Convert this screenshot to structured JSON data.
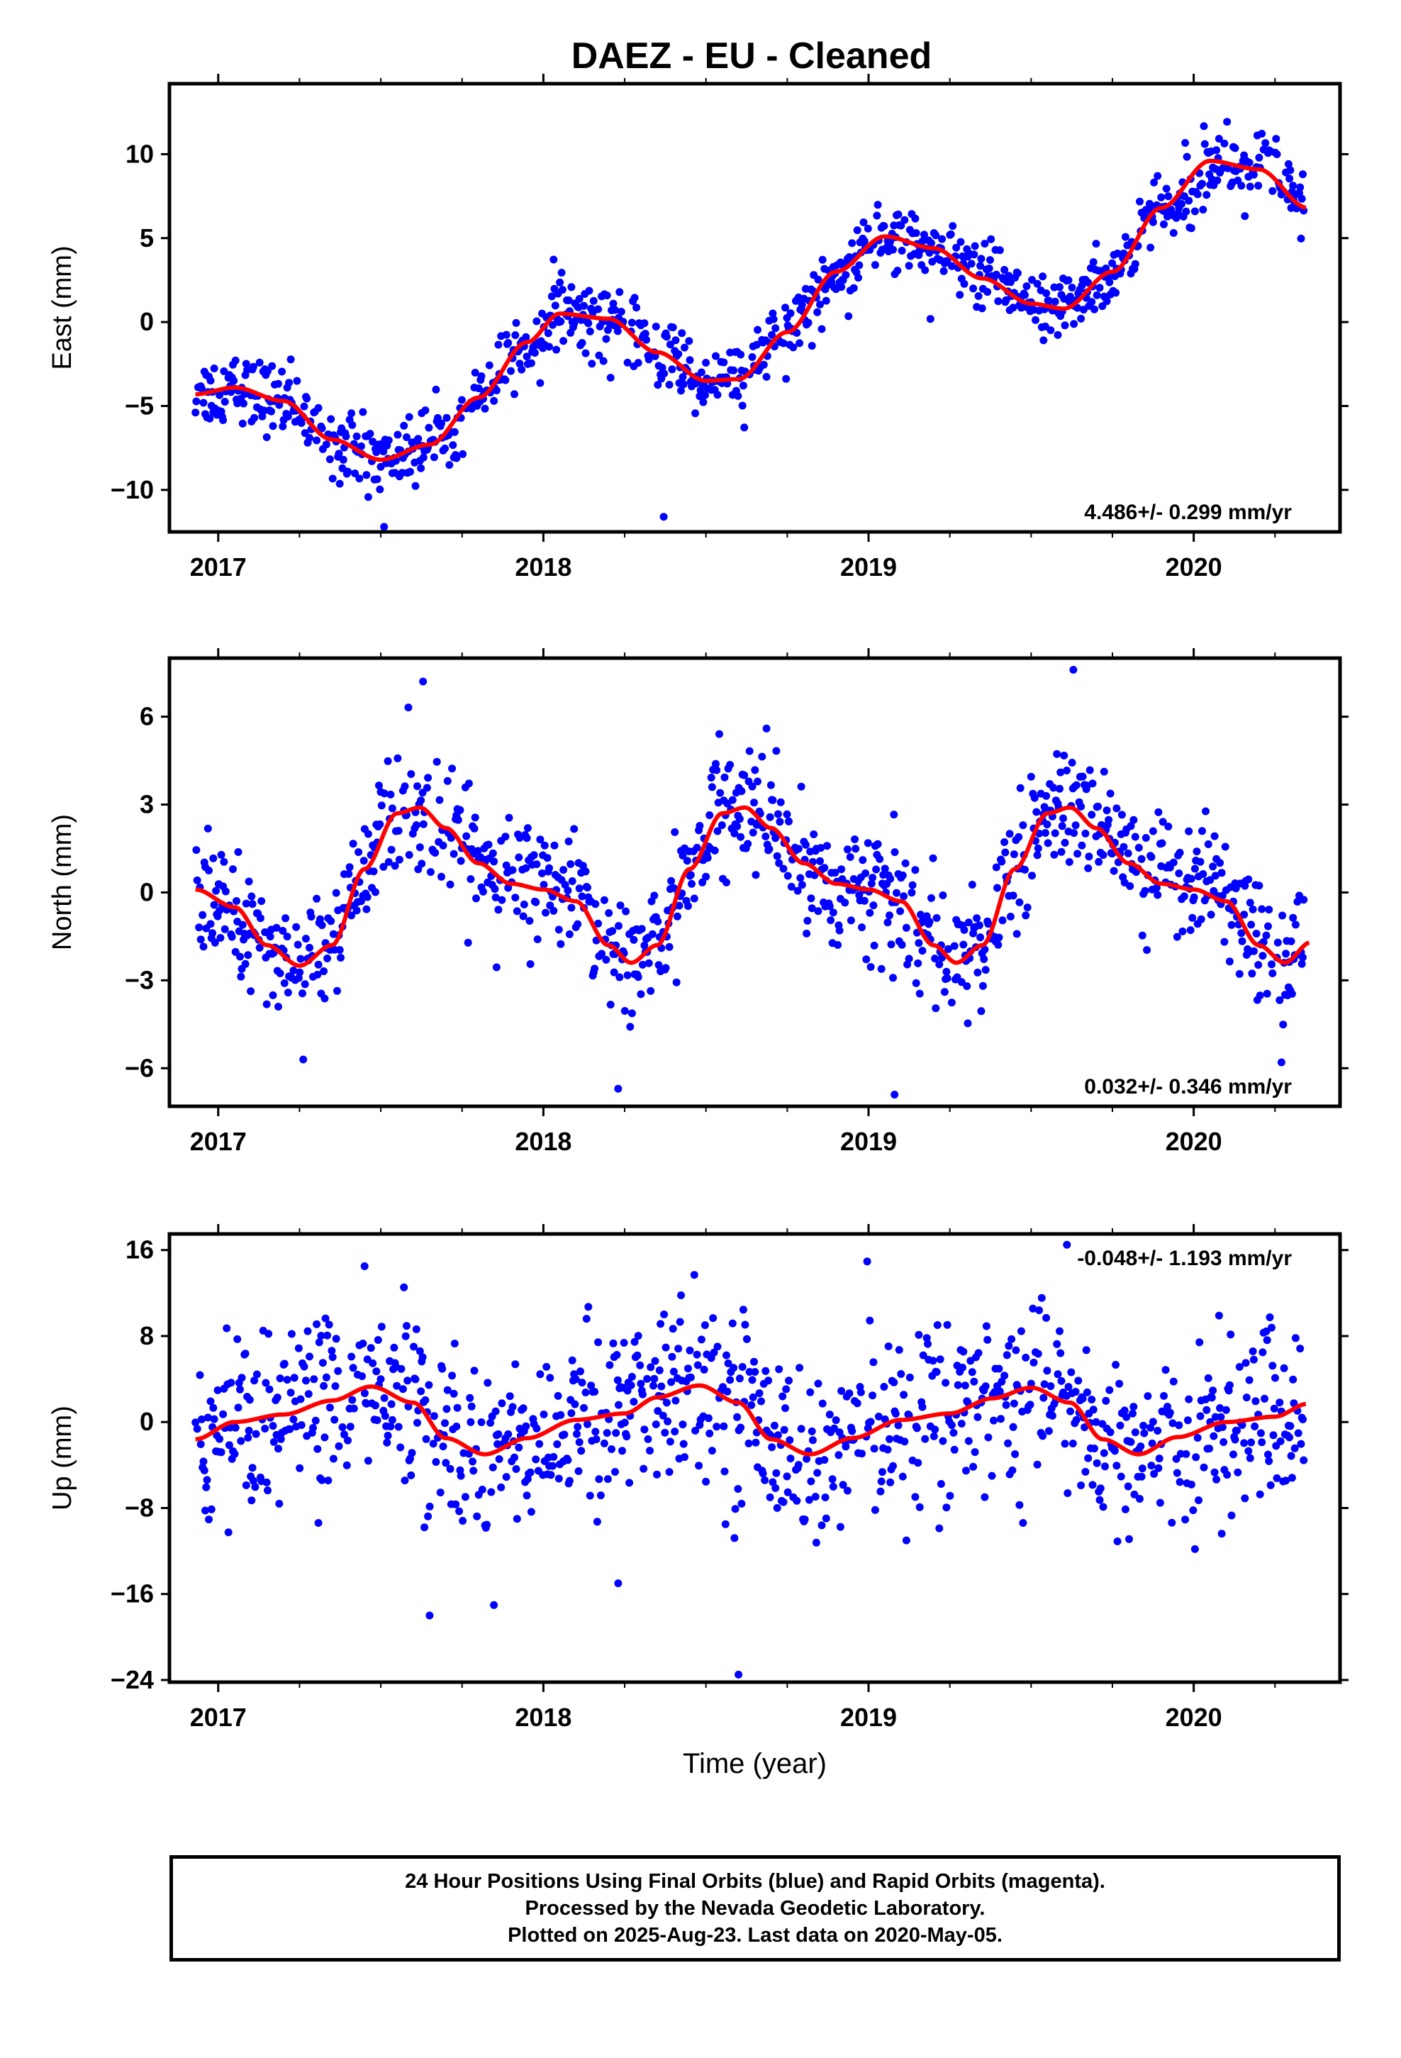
{
  "title": "DAEZ  - EU - Cleaned",
  "footer": {
    "line1": "24 Hour Positions Using Final Orbits (blue) and Rapid Orbits (magenta).",
    "line2": "Processed by the Nevada Geodetic Laboratory.",
    "line3": "Plotted on 2025-Aug-23. Last data on 2020-May-05."
  },
  "colors": {
    "points": "#0000ff",
    "fit": "#ff0000",
    "axis": "#000000"
  },
  "chart_data": [
    {
      "type": "scatter",
      "ylabel": "East (mm)",
      "xlabel": "",
      "xlim": [
        2016.85,
        2020.45
      ],
      "ylim": [
        -12.5,
        14.2
      ],
      "yticks": [
        -10,
        -5,
        0,
        5,
        10
      ],
      "yticklabels": [
        "−10",
        "−5",
        "0",
        "5",
        "10"
      ],
      "xticks": [
        2017,
        2018,
        2019,
        2020
      ],
      "xticklabels": [
        "2017",
        "2018",
        "2019",
        "2020"
      ],
      "rate_label": "4.486+/- 0.299 mm/yr",
      "rate_position": "bottom-right",
      "grid": false,
      "trend": {
        "intercept_2017": -4.6,
        "rate": 4.486,
        "amp": 2.6,
        "phase": 0.12,
        "amp2": 0.6,
        "phase2": 0.0
      },
      "scatter_sigma": 1.05,
      "fit_points": [
        [
          2016.93,
          -4.3
        ],
        [
          2017.05,
          -3.9
        ],
        [
          2017.2,
          -4.7
        ],
        [
          2017.35,
          -7.0
        ],
        [
          2017.5,
          -8.2
        ],
        [
          2017.65,
          -7.3
        ],
        [
          2017.8,
          -4.5
        ],
        [
          2017.95,
          -1.2
        ],
        [
          2018.05,
          0.5
        ],
        [
          2018.2,
          0.2
        ],
        [
          2018.35,
          -1.8
        ],
        [
          2018.5,
          -3.5
        ],
        [
          2018.6,
          -3.4
        ],
        [
          2018.75,
          -0.6
        ],
        [
          2018.9,
          3.0
        ],
        [
          2019.05,
          5.1
        ],
        [
          2019.2,
          4.4
        ],
        [
          2019.35,
          2.6
        ],
        [
          2019.5,
          1.1
        ],
        [
          2019.6,
          0.8
        ],
        [
          2019.75,
          3.0
        ],
        [
          2019.9,
          6.8
        ],
        [
          2020.05,
          9.6
        ],
        [
          2020.2,
          9.1
        ],
        [
          2020.35,
          6.8
        ]
      ],
      "outliers": [
        [
          2018.37,
          -11.6
        ],
        [
          2017.51,
          -12.2
        ]
      ]
    },
    {
      "type": "scatter",
      "ylabel": "North (mm)",
      "xlabel": "",
      "xlim": [
        2016.85,
        2020.45
      ],
      "ylim": [
        -7.3,
        8.0
      ],
      "yticks": [
        -6,
        -3,
        0,
        3,
        6
      ],
      "yticklabels": [
        "−6",
        "−3",
        "0",
        "3",
        "6"
      ],
      "xticks": [
        2017,
        2018,
        2019,
        2020
      ],
      "xticklabels": [
        "2017",
        "2018",
        "2019",
        "2020"
      ],
      "rate_label": "0.032+/- 0.346 mm/yr",
      "rate_position": "bottom-right",
      "grid": false,
      "scatter_sigma": 1.0,
      "fit_points": [
        [
          2016.93,
          0.1
        ],
        [
          2017.05,
          -0.5
        ],
        [
          2017.15,
          -1.8
        ],
        [
          2017.25,
          -2.5
        ],
        [
          2017.35,
          -1.8
        ],
        [
          2017.45,
          0.8
        ],
        [
          2017.55,
          2.7
        ],
        [
          2017.62,
          2.9
        ],
        [
          2017.7,
          2.2
        ],
        [
          2017.8,
          1.0
        ],
        [
          2017.9,
          0.3
        ],
        [
          2018.0,
          0.1
        ],
        [
          2018.1,
          -0.3
        ],
        [
          2018.2,
          -1.8
        ],
        [
          2018.27,
          -2.4
        ],
        [
          2018.35,
          -1.8
        ],
        [
          2018.45,
          0.8
        ],
        [
          2018.55,
          2.7
        ],
        [
          2018.62,
          2.9
        ],
        [
          2018.7,
          2.2
        ],
        [
          2018.8,
          1.0
        ],
        [
          2018.9,
          0.3
        ],
        [
          2019.0,
          0.1
        ],
        [
          2019.1,
          -0.3
        ],
        [
          2019.2,
          -1.8
        ],
        [
          2019.27,
          -2.4
        ],
        [
          2019.35,
          -1.8
        ],
        [
          2019.45,
          0.8
        ],
        [
          2019.55,
          2.7
        ],
        [
          2019.62,
          2.9
        ],
        [
          2019.7,
          2.2
        ],
        [
          2019.8,
          1.0
        ],
        [
          2019.9,
          0.3
        ],
        [
          2020.0,
          0.1
        ],
        [
          2020.1,
          -0.3
        ],
        [
          2020.2,
          -1.8
        ],
        [
          2020.28,
          -2.4
        ],
        [
          2020.36,
          -1.7
        ]
      ],
      "outliers": [
        [
          2019.63,
          7.6
        ],
        [
          2017.63,
          7.2
        ],
        [
          2018.23,
          -6.7
        ],
        [
          2019.08,
          -6.9
        ],
        [
          2020.27,
          -5.8
        ]
      ]
    },
    {
      "type": "scatter",
      "ylabel": "Up (mm)",
      "xlabel": "Time (year)",
      "xlim": [
        2016.85,
        2020.45
      ],
      "ylim": [
        -24.2,
        17.5
      ],
      "yticks": [
        -24,
        -16,
        -8,
        0,
        8,
        16
      ],
      "yticklabels": [
        "−24",
        "−16",
        "−8",
        "0",
        "8",
        "16"
      ],
      "xticks": [
        2017,
        2018,
        2019,
        2020
      ],
      "xticklabels": [
        "2017",
        "2018",
        "2019",
        "2020"
      ],
      "rate_label": "-0.048+/- 1.193 mm/yr",
      "rate_position": "top-right",
      "grid": false,
      "scatter_sigma": 4.2,
      "fit_points": [
        [
          2016.93,
          -1.6
        ],
        [
          2017.05,
          0.0
        ],
        [
          2017.2,
          0.7
        ],
        [
          2017.35,
          2.0
        ],
        [
          2017.47,
          3.3
        ],
        [
          2017.6,
          1.8
        ],
        [
          2017.7,
          -1.5
        ],
        [
          2017.82,
          -3.0
        ],
        [
          2017.95,
          -1.5
        ],
        [
          2018.1,
          0.2
        ],
        [
          2018.25,
          0.8
        ],
        [
          2018.35,
          2.3
        ],
        [
          2018.48,
          3.4
        ],
        [
          2018.6,
          1.8
        ],
        [
          2018.7,
          -1.6
        ],
        [
          2018.82,
          -3.0
        ],
        [
          2018.95,
          -1.5
        ],
        [
          2019.1,
          0.2
        ],
        [
          2019.25,
          0.8
        ],
        [
          2019.38,
          2.2
        ],
        [
          2019.5,
          3.2
        ],
        [
          2019.62,
          1.8
        ],
        [
          2019.72,
          -1.6
        ],
        [
          2019.83,
          -3.0
        ],
        [
          2019.95,
          -1.4
        ],
        [
          2020.1,
          0.0
        ],
        [
          2020.25,
          0.5
        ],
        [
          2020.35,
          1.7
        ]
      ],
      "outliers": [
        [
          2018.6,
          -23.5
        ],
        [
          2017.65,
          -18.0
        ],
        [
          2019.61,
          16.5
        ],
        [
          2018.23,
          -15.0
        ],
        [
          2017.45,
          14.5
        ]
      ]
    }
  ]
}
